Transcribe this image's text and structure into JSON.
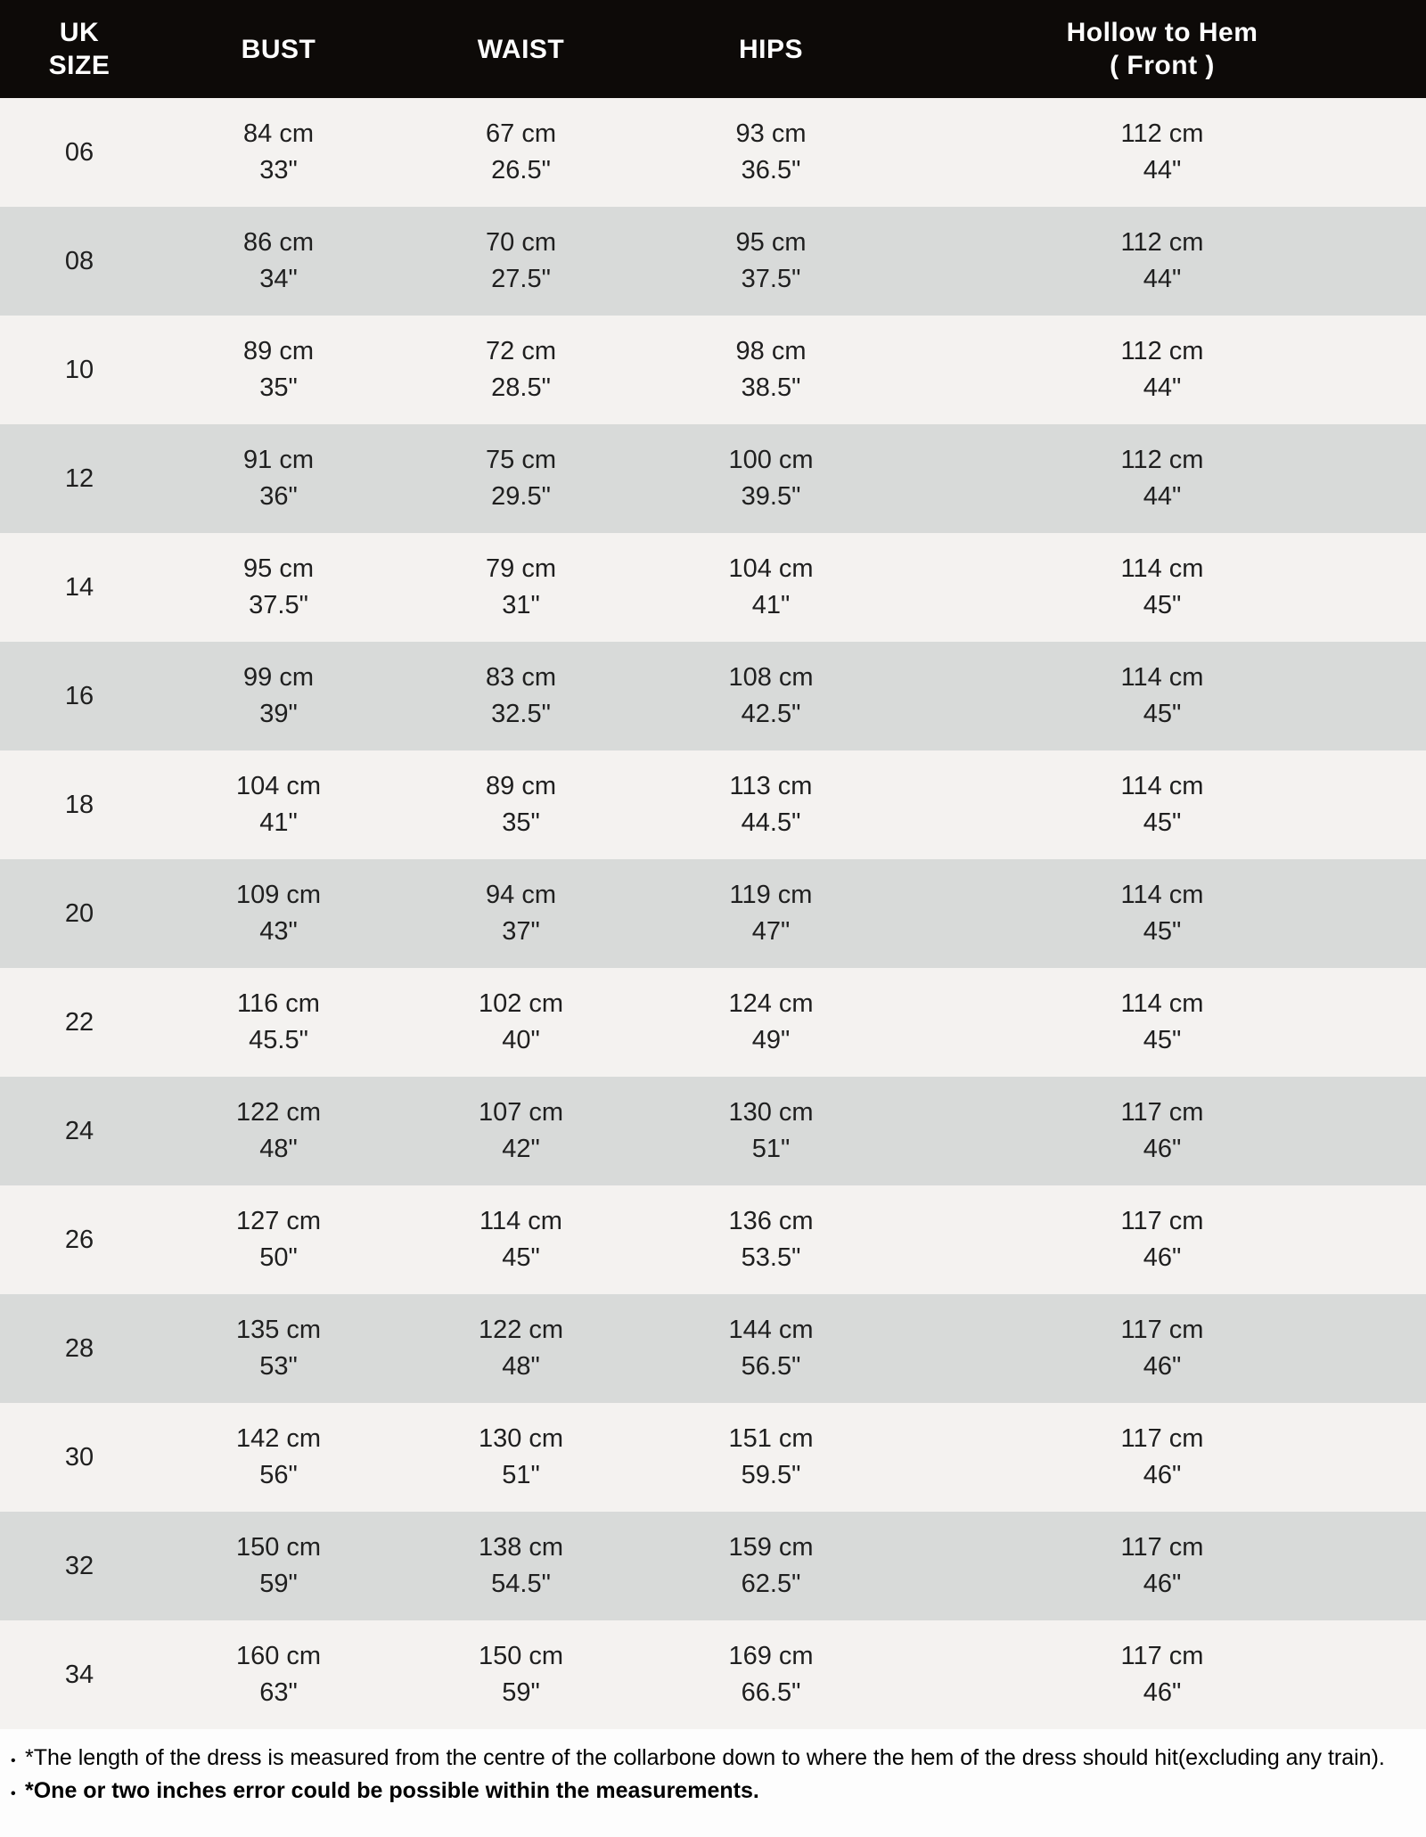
{
  "size_chart": {
    "header": {
      "size_line1": "UK",
      "size_line2": "SIZE",
      "bust": "BUST",
      "waist": "WAIST",
      "hips": "HIPS",
      "hollow_line1": "Hollow to Hem",
      "hollow_line2": "( Front )"
    },
    "rows": [
      {
        "size": "06",
        "bust": [
          "84 cm",
          "33\""
        ],
        "waist": [
          "67 cm",
          "26.5\""
        ],
        "hips": [
          "93 cm",
          "36.5\""
        ],
        "hollow": [
          "112 cm",
          "44\""
        ]
      },
      {
        "size": "08",
        "bust": [
          "86 cm",
          "34\""
        ],
        "waist": [
          "70 cm",
          "27.5\""
        ],
        "hips": [
          "95 cm",
          "37.5\""
        ],
        "hollow": [
          "112 cm",
          "44\""
        ]
      },
      {
        "size": "10",
        "bust": [
          "89 cm",
          "35\""
        ],
        "waist": [
          "72 cm",
          "28.5\""
        ],
        "hips": [
          "98 cm",
          "38.5\""
        ],
        "hollow": [
          "112 cm",
          "44\""
        ]
      },
      {
        "size": "12",
        "bust": [
          "91 cm",
          "36\""
        ],
        "waist": [
          "75 cm",
          "29.5\""
        ],
        "hips": [
          "100 cm",
          "39.5\""
        ],
        "hollow": [
          "112 cm",
          "44\""
        ]
      },
      {
        "size": "14",
        "bust": [
          "95 cm",
          "37.5\""
        ],
        "waist": [
          "79 cm",
          "31\""
        ],
        "hips": [
          "104 cm",
          "41\""
        ],
        "hollow": [
          "114 cm",
          "45\""
        ]
      },
      {
        "size": "16",
        "bust": [
          "99 cm",
          "39\""
        ],
        "waist": [
          "83 cm",
          "32.5\""
        ],
        "hips": [
          "108 cm",
          "42.5\""
        ],
        "hollow": [
          "114 cm",
          "45\""
        ]
      },
      {
        "size": "18",
        "bust": [
          "104 cm",
          "41\""
        ],
        "waist": [
          "89 cm",
          "35\""
        ],
        "hips": [
          "113 cm",
          "44.5\""
        ],
        "hollow": [
          "114 cm",
          "45\""
        ]
      },
      {
        "size": "20",
        "bust": [
          "109 cm",
          "43\""
        ],
        "waist": [
          "94 cm",
          "37\""
        ],
        "hips": [
          "119 cm",
          "47\""
        ],
        "hollow": [
          "114 cm",
          "45\""
        ]
      },
      {
        "size": "22",
        "bust": [
          "116 cm",
          "45.5\""
        ],
        "waist": [
          "102 cm",
          "40\""
        ],
        "hips": [
          "124 cm",
          "49\""
        ],
        "hollow": [
          "114 cm",
          "45\""
        ]
      },
      {
        "size": "24",
        "bust": [
          "122 cm",
          "48\""
        ],
        "waist": [
          "107 cm",
          "42\""
        ],
        "hips": [
          "130 cm",
          "51\""
        ],
        "hollow": [
          "117 cm",
          "46\""
        ]
      },
      {
        "size": "26",
        "bust": [
          "127 cm",
          "50\""
        ],
        "waist": [
          "114 cm",
          "45\""
        ],
        "hips": [
          "136 cm",
          "53.5\""
        ],
        "hollow": [
          "117 cm",
          "46\""
        ]
      },
      {
        "size": "28",
        "bust": [
          "135 cm",
          "53\""
        ],
        "waist": [
          "122 cm",
          "48\""
        ],
        "hips": [
          "144 cm",
          "56.5\""
        ],
        "hollow": [
          "117 cm",
          "46\""
        ]
      },
      {
        "size": "30",
        "bust": [
          "142 cm",
          "56\""
        ],
        "waist": [
          "130 cm",
          "51\""
        ],
        "hips": [
          "151 cm",
          "59.5\""
        ],
        "hollow": [
          "117 cm",
          "46\""
        ]
      },
      {
        "size": "32",
        "bust": [
          "150 cm",
          "59\""
        ],
        "waist": [
          "138 cm",
          "54.5\""
        ],
        "hips": [
          "159 cm",
          "62.5\""
        ],
        "hollow": [
          "117 cm",
          "46\""
        ]
      },
      {
        "size": "34",
        "bust": [
          "160 cm",
          "63\""
        ],
        "waist": [
          "150 cm",
          "59\""
        ],
        "hips": [
          "169 cm",
          "66.5\""
        ],
        "hollow": [
          "117 cm",
          "46\""
        ]
      }
    ],
    "notes_bullet": "•",
    "notes": [
      {
        "text": "*The length of the dress is measured from the centre of the collarbone down to where the hem of the dress should hit(excluding any train).",
        "bold": false
      },
      {
        "text": "*One or two inches error could be possible within the measurements.",
        "bold": true
      }
    ],
    "colors": {
      "header_bg": "#0d0a08",
      "header_text": "#ffffff",
      "row_light": "#f4f2f0",
      "row_dark": "#d8dad9",
      "cell_text": "#1f1f1f",
      "notes_bg": "#fdfdfd",
      "notes_text": "#000000"
    }
  }
}
